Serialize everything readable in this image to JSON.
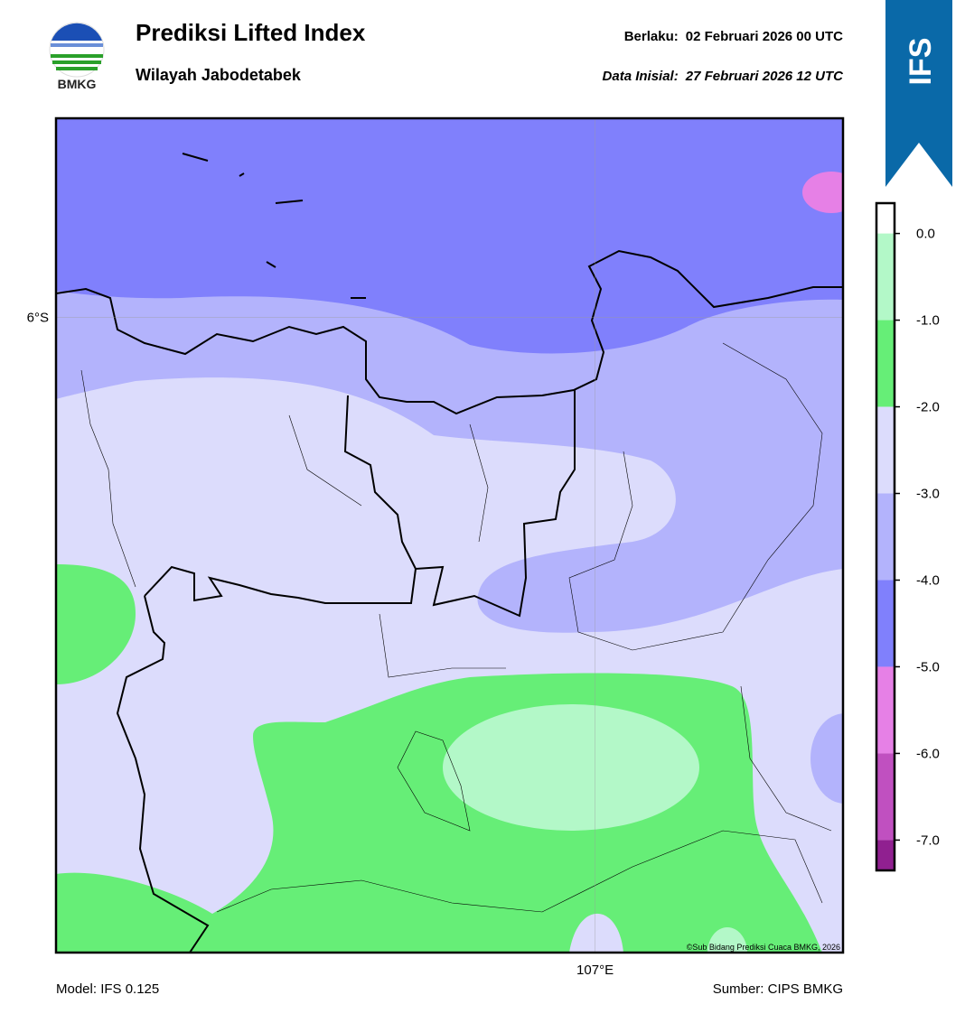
{
  "header": {
    "logo_text": "BMKG",
    "title": "Prediksi Lifted Index",
    "subtitle": "Wilayah Jabodetabek",
    "valid_label": "Berlaku:",
    "valid_time": "02 Februari 2026 00 UTC",
    "init_label": "Data Inisial:",
    "init_time": "27 Februari 2026 12 UTC",
    "badge": "IFS"
  },
  "map": {
    "lonlim": [
      106.0,
      107.46
    ],
    "latlim": [
      -7.18,
      -5.63
    ],
    "lat_ticks": [
      {
        "value": -6,
        "label": "6°S"
      }
    ],
    "lon_ticks": [
      {
        "value": 107,
        "label": "107°E"
      }
    ],
    "copyright": "©Sub Bidang Prediksi Cuaca BMKG, 2026"
  },
  "colorbar": {
    "lim": [
      -7.35,
      0.35
    ],
    "levels": [
      0.35,
      0,
      -1,
      -2,
      -3,
      -4,
      -5,
      -6,
      -7,
      -7.35
    ],
    "colors": [
      "#ffffff",
      "#b3f8c8",
      "#66ee77",
      "#dcdcfc",
      "#b3b3fc",
      "#8080fc",
      "#e680e6",
      "#c050c0",
      "#902090"
    ],
    "ticks": [
      {
        "value": 0,
        "label": "0.0"
      },
      {
        "value": -1,
        "label": "-1.0"
      },
      {
        "value": -2,
        "label": "-2.0"
      },
      {
        "value": -3,
        "label": "-3.0"
      },
      {
        "value": -4,
        "label": "-4.0"
      },
      {
        "value": -5,
        "label": "-5.0"
      },
      {
        "value": -6,
        "label": "-6.0"
      },
      {
        "value": -7,
        "label": "-7.0"
      }
    ]
  },
  "footer": {
    "model": "Model: IFS 0.125",
    "source": "Sumber: CIPS BMKG"
  }
}
